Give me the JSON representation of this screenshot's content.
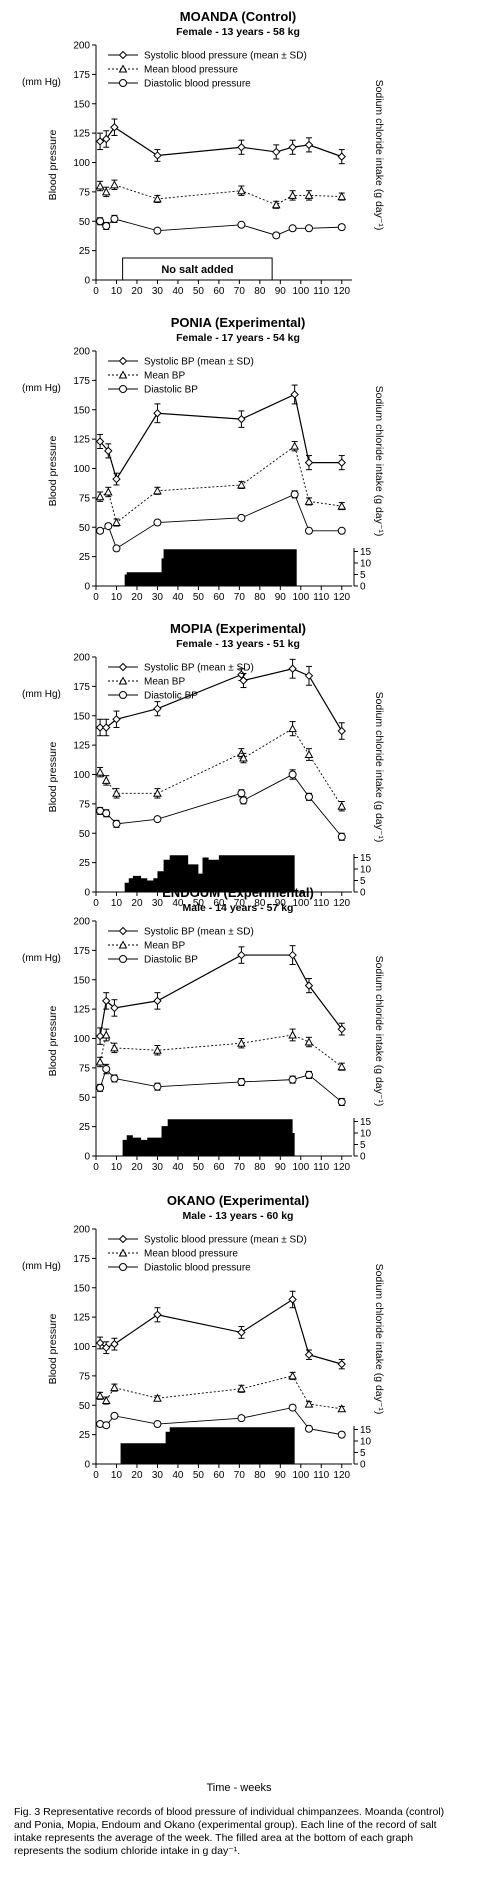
{
  "figure": {
    "xlabel": "Time - weeks",
    "caption": "Fig. 3  Representative records of blood pressure of individual chimpanzees. Moanda (control) and Ponia, Mopia, Endoum and Okano (experimental group). Each line of the record of salt intake represents the average of the week.  The filled area at the bottom of each graph represents the sodium chloride intake in g day⁻¹."
  },
  "chart_data": [
    {
      "type": "line",
      "title": "MOANDA (Control)",
      "subtitle": "Female - 13 years - 58 kg",
      "ylabel": "Blood pressure",
      "yunit": "(mm Hg)",
      "ylabel_right": "Sodium chloride intake (g day⁻¹)",
      "ylim": [
        0,
        200
      ],
      "yticks": [
        "0",
        "25",
        "50",
        "75",
        "100",
        "125",
        "150",
        "175",
        "200"
      ],
      "xlim": [
        0,
        125
      ],
      "xticks": [
        "0",
        "10",
        "20",
        "30",
        "40",
        "50",
        "60",
        "70",
        "80",
        "90",
        "100",
        "110",
        "120"
      ],
      "annotation": "No salt added",
      "annotation_range": [
        13,
        86
      ],
      "series": [
        {
          "name": "Systolic blood pressure (mean ± SD)",
          "style": "solid",
          "marker": "diamond",
          "x": [
            2,
            5,
            9,
            30,
            71,
            88,
            96,
            104,
            120
          ],
          "y": [
            118,
            120,
            130,
            106,
            113,
            109,
            113,
            115,
            105
          ],
          "err": [
            7,
            7,
            7,
            5,
            6,
            6,
            6,
            6,
            6
          ]
        },
        {
          "name": "Mean blood pressure",
          "style": "dotted",
          "marker": "triangle",
          "x": [
            2,
            5,
            9,
            30,
            71,
            88,
            96,
            104,
            120
          ],
          "y": [
            80,
            75,
            81,
            69,
            76,
            64,
            72,
            72,
            71
          ],
          "err": [
            4,
            4,
            4,
            3,
            4,
            3,
            4,
            4,
            3
          ]
        },
        {
          "name": "Diastolic blood pressure",
          "style": "solid-thin",
          "marker": "circle",
          "x": [
            2,
            5,
            9,
            30,
            71,
            88,
            96,
            104,
            120
          ],
          "y": [
            50,
            46,
            52,
            42,
            47,
            38,
            44,
            44,
            45
          ],
          "err": [
            3,
            3,
            3,
            2,
            2,
            2,
            2,
            2,
            2
          ]
        }
      ]
    },
    {
      "type": "line",
      "title": "PONIA (Experimental)",
      "subtitle": "Female - 17 years - 54 kg",
      "ylabel": "Blood pressure",
      "yunit": "(mm Hg)",
      "ylabel_right": "Sodium chloride intake (g day⁻¹)",
      "ylim": [
        0,
        200
      ],
      "yticks": [
        "0",
        "25",
        "50",
        "75",
        "100",
        "125",
        "150",
        "175",
        "200"
      ],
      "y2ticks": [
        "0",
        "5",
        "10",
        "15"
      ],
      "xlim": [
        0,
        125
      ],
      "xticks": [
        "0",
        "10",
        "20",
        "30",
        "40",
        "50",
        "60",
        "70",
        "80",
        "90",
        "100",
        "110",
        "120"
      ],
      "series": [
        {
          "name": "Systolic BP (mean ± SD)",
          "style": "solid",
          "marker": "diamond",
          "x": [
            2,
            6,
            10,
            30,
            71,
            97,
            104,
            120
          ],
          "y": [
            123,
            115,
            91,
            147,
            142,
            163,
            105,
            105
          ],
          "err": [
            6,
            6,
            5,
            8,
            7,
            8,
            6,
            6
          ]
        },
        {
          "name": "Mean BP",
          "style": "dotted",
          "marker": "triangle",
          "x": [
            2,
            6,
            10,
            30,
            71,
            97,
            104,
            120
          ],
          "y": [
            76,
            80,
            54,
            81,
            86,
            119,
            72,
            68
          ],
          "err": [
            4,
            4,
            3,
            3,
            3,
            4,
            3,
            3
          ]
        },
        {
          "name": "Diastolic BP",
          "style": "solid-thin",
          "marker": "circle",
          "x": [
            2,
            6,
            10,
            30,
            71,
            97,
            104,
            120
          ],
          "y": [
            47,
            51,
            32,
            54,
            58,
            78,
            47,
            47
          ],
          "err": [
            2,
            2,
            2,
            2,
            2,
            3,
            2,
            2
          ]
        }
      ],
      "salt": {
        "x": [
          14,
          15,
          20,
          25,
          28,
          32,
          33,
          35,
          40,
          60,
          80,
          98
        ],
        "y": [
          5,
          6,
          6,
          6,
          6,
          12,
          16,
          16,
          16,
          16,
          16,
          16
        ],
        "end": 98
      }
    },
    {
      "type": "line",
      "title": "MOPIA (Experimental)",
      "subtitle": "Female - 13 years - 51 kg",
      "ylabel": "Blood pressure",
      "yunit": "(mm Hg)",
      "ylabel_right": "Sodium chloride intake (g day⁻¹)",
      "ylim": [
        0,
        200
      ],
      "yticks": [
        "0",
        "25",
        "50",
        "75",
        "100",
        "125",
        "150",
        "175",
        "200"
      ],
      "y2ticks": [
        "0",
        "5",
        "10",
        "15"
      ],
      "xlim": [
        0,
        125
      ],
      "xticks": [
        "0",
        "10",
        "20",
        "30",
        "40",
        "50",
        "60",
        "70",
        "80",
        "90",
        "100",
        "110",
        "120"
      ],
      "series": [
        {
          "name": "Systolic BP (mean ± SD)",
          "style": "solid",
          "marker": "diamond",
          "x": [
            2,
            5,
            10,
            30,
            71,
            72,
            96,
            104,
            120
          ],
          "y": [
            140,
            140,
            147,
            156,
            185,
            180,
            190,
            184,
            137
          ],
          "err": [
            7,
            7,
            7,
            6,
            5,
            6,
            8,
            8,
            7
          ]
        },
        {
          "name": "Mean BP",
          "style": "dotted",
          "marker": "triangle",
          "x": [
            2,
            5,
            10,
            30,
            71,
            72,
            96,
            104,
            120
          ],
          "y": [
            102,
            95,
            84,
            84,
            118,
            114,
            139,
            117,
            73
          ],
          "err": [
            4,
            4,
            4,
            4,
            4,
            4,
            6,
            5,
            4
          ]
        },
        {
          "name": "Diastolic BP",
          "style": "solid-thin",
          "marker": "circle",
          "x": [
            2,
            5,
            10,
            30,
            71,
            72,
            96,
            104,
            120
          ],
          "y": [
            69,
            67,
            58,
            62,
            84,
            78,
            100,
            81,
            47
          ],
          "err": [
            3,
            3,
            3,
            2,
            3,
            3,
            4,
            3,
            3
          ]
        }
      ],
      "salt": {
        "x": [
          14,
          16,
          18,
          22,
          25,
          28,
          30,
          33,
          36,
          40,
          45,
          50,
          52,
          55,
          60,
          70,
          80,
          90,
          97
        ],
        "y": [
          4,
          6,
          7,
          6,
          5,
          6,
          9,
          14,
          16,
          16,
          12,
          8,
          15,
          14,
          16,
          16,
          16,
          16,
          14
        ],
        "end": 97
      }
    },
    {
      "type": "line",
      "title": "ENDOUM (Experimental)",
      "subtitle": "Male - 14 years - 57 kg",
      "ylabel": "Blood pressure",
      "yunit": "(mm Hg)",
      "ylabel_right": "Sodium chloride intake (g day⁻¹)",
      "ylim": [
        0,
        200
      ],
      "yticks": [
        "0",
        "25",
        "50",
        "75",
        "100",
        "125",
        "150",
        "175",
        "200"
      ],
      "y2ticks": [
        "0",
        "5",
        "10",
        "15"
      ],
      "xlim": [
        0,
        125
      ],
      "xticks": [
        "0",
        "10",
        "20",
        "30",
        "40",
        "50",
        "60",
        "70",
        "80",
        "90",
        "100",
        "110",
        "120"
      ],
      "series": [
        {
          "name": "Systolic BP (mean ± SD)",
          "style": "solid",
          "marker": "diamond",
          "x": [
            2,
            5,
            9,
            30,
            71,
            96,
            104,
            120
          ],
          "y": [
            102,
            132,
            126,
            132,
            171,
            171,
            145,
            108
          ],
          "err": [
            7,
            7,
            7,
            7,
            7,
            8,
            6,
            5
          ]
        },
        {
          "name": "Mean BP",
          "style": "dotted",
          "marker": "triangle",
          "x": [
            2,
            5,
            9,
            30,
            71,
            96,
            104,
            120
          ],
          "y": [
            80,
            103,
            92,
            90,
            96,
            103,
            97,
            76
          ],
          "err": [
            4,
            5,
            4,
            4,
            4,
            5,
            4,
            3
          ]
        },
        {
          "name": "Diastolic BP",
          "style": "solid-thin",
          "marker": "circle",
          "x": [
            2,
            5,
            9,
            30,
            71,
            96,
            104,
            120
          ],
          "y": [
            58,
            74,
            66,
            59,
            63,
            65,
            69,
            46
          ],
          "err": [
            3,
            4,
            3,
            3,
            3,
            3,
            3,
            3
          ]
        }
      ],
      "salt": {
        "x": [
          13,
          15,
          18,
          22,
          25,
          30,
          32,
          35,
          40,
          60,
          80,
          96
        ],
        "y": [
          7,
          9,
          8,
          7,
          8,
          8,
          13,
          16,
          16,
          16,
          16,
          10
        ],
        "end": 97
      }
    },
    {
      "type": "line",
      "title": "OKANO (Experimental)",
      "subtitle": "Male - 13 years - 60 kg",
      "ylabel": "Blood pressure",
      "yunit": "(mm Hg)",
      "ylabel_right": "Sodium chloride intake (g day⁻¹)",
      "ylim": [
        0,
        200
      ],
      "yticks": [
        "0",
        "25",
        "50",
        "75",
        "100",
        "125",
        "150",
        "175",
        "200"
      ],
      "y2ticks": [
        "0",
        "5",
        "10",
        "15"
      ],
      "xlim": [
        0,
        125
      ],
      "xticks": [
        "0",
        "10",
        "20",
        "30",
        "40",
        "50",
        "60",
        "70",
        "80",
        "90",
        "100",
        "110",
        "120"
      ],
      "series": [
        {
          "name": "Systolic blood pressure (mean ± SD)",
          "style": "solid",
          "marker": "diamond",
          "x": [
            2,
            5,
            9,
            30,
            71,
            96,
            104,
            120
          ],
          "y": [
            103,
            99,
            102,
            127,
            112,
            140,
            93,
            85
          ],
          "err": [
            5,
            5,
            5,
            6,
            5,
            7,
            4,
            4
          ]
        },
        {
          "name": "Mean blood pressure",
          "style": "dotted",
          "marker": "triangle",
          "x": [
            2,
            5,
            9,
            30,
            71,
            96,
            104,
            120
          ],
          "y": [
            58,
            54,
            65,
            56,
            64,
            75,
            51,
            47
          ],
          "err": [
            3,
            3,
            3,
            2,
            3,
            3,
            2,
            2
          ]
        },
        {
          "name": "Diastolic blood pressure",
          "style": "solid-thin",
          "marker": "circle",
          "x": [
            2,
            5,
            9,
            30,
            71,
            96,
            104,
            120
          ],
          "y": [
            34,
            33,
            41,
            34,
            39,
            48,
            30,
            25
          ],
          "err": [
            2,
            2,
            2,
            2,
            2,
            2,
            2,
            2
          ]
        }
      ],
      "salt": {
        "x": [
          12,
          14,
          20,
          25,
          30,
          34,
          36,
          40,
          60,
          80,
          96
        ],
        "y": [
          9,
          9,
          9,
          9,
          9,
          14,
          16,
          16,
          16,
          16,
          16
        ],
        "end": 97
      }
    }
  ]
}
